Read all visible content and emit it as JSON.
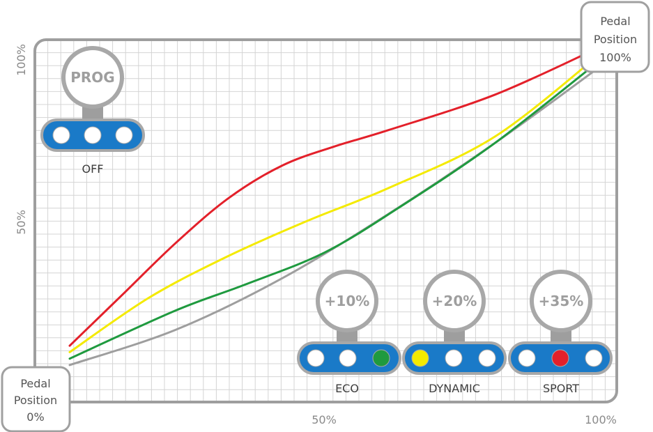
{
  "colors": {
    "frame": "#9e9e9e",
    "grid": "#d4d4d4",
    "bar_blue": "#1a7ac8",
    "off_dot": "#ffffff",
    "eco_dot": "#1f9a3f",
    "dynamic_dot": "#f4ea00",
    "sport_dot": "#e3202a"
  },
  "chart_data": {
    "type": "line",
    "x_ticks": [
      "50%",
      "100%"
    ],
    "y_ticks": [
      "50%",
      "100%"
    ],
    "xlim": [
      0,
      100
    ],
    "ylim": [
      0,
      100
    ],
    "grid": true,
    "series": [
      {
        "color": "#9e9e9e",
        "points": [
          [
            0,
            5
          ],
          [
            20,
            16
          ],
          [
            40,
            32
          ],
          [
            60,
            52
          ],
          [
            80,
            74
          ],
          [
            100,
            98
          ]
        ]
      },
      {
        "color": "#1f9a3f",
        "points": [
          [
            0,
            7
          ],
          [
            20,
            22
          ],
          [
            33,
            30
          ],
          [
            48,
            40
          ],
          [
            62,
            54
          ],
          [
            80,
            74
          ],
          [
            100,
            100
          ]
        ]
      },
      {
        "color": "#f4ea00",
        "points": [
          [
            0,
            9
          ],
          [
            15,
            26
          ],
          [
            30,
            39
          ],
          [
            45,
            50
          ],
          [
            60,
            60
          ],
          [
            80,
            76
          ],
          [
            100,
            102
          ]
        ]
      },
      {
        "color": "#e3202a",
        "points": [
          [
            0,
            11
          ],
          [
            10,
            27
          ],
          [
            20,
            43
          ],
          [
            30,
            57
          ],
          [
            40,
            67
          ],
          [
            50,
            73
          ],
          [
            60,
            78
          ],
          [
            80,
            89
          ],
          [
            100,
            104
          ]
        ]
      }
    ]
  },
  "start_box": {
    "lines": [
      "Pedal",
      "Position",
      "0%"
    ]
  },
  "end_box": {
    "lines": [
      "Pedal",
      "Position",
      "100%"
    ]
  },
  "modes": [
    {
      "knob": "PROG",
      "name": "OFF",
      "dots": [
        "off_dot",
        "off_dot",
        "off_dot"
      ]
    },
    {
      "knob": "+10%",
      "name": "ECO",
      "dots": [
        "off_dot",
        "off_dot",
        "eco_dot"
      ]
    },
    {
      "knob": "+20%",
      "name": "DYNAMIC",
      "dots": [
        "dynamic_dot",
        "off_dot",
        "off_dot"
      ]
    },
    {
      "knob": "+35%",
      "name": "SPORT",
      "dots": [
        "off_dot",
        "sport_dot",
        "off_dot"
      ]
    }
  ]
}
